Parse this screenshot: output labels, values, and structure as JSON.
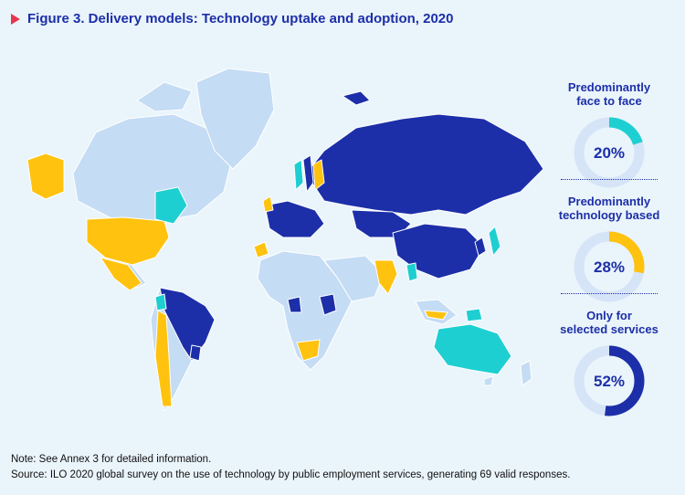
{
  "title": "Figure 3. Delivery models: Technology uptake and adoption, 2020",
  "legend": [
    {
      "label_line1": "Predominantly",
      "label_line2": "face to face",
      "value": 20,
      "value_label": "20%",
      "color": "#1ecfd1"
    },
    {
      "label_line1": "Predominantly",
      "label_line2": "technology based",
      "value": 28,
      "value_label": "28%",
      "color": "#ffc20e"
    },
    {
      "label_line1": "Only for",
      "label_line2": "selected services",
      "value": 52,
      "value_label": "52%",
      "color": "#1c2fa8"
    }
  ],
  "colors": {
    "background": "#eaf4fb",
    "no_data": "#c4dcf4",
    "face_to_face": "#1ecfd1",
    "technology_based": "#ffc20e",
    "selected_services": "#1c2fa8",
    "donut_track": "#d6e4f7"
  },
  "note": "Note: See Annex 3 for detailed information.",
  "source": "Source: ILO 2020 global survey on the use of technology by public employment services, generating 69 valid responses."
}
